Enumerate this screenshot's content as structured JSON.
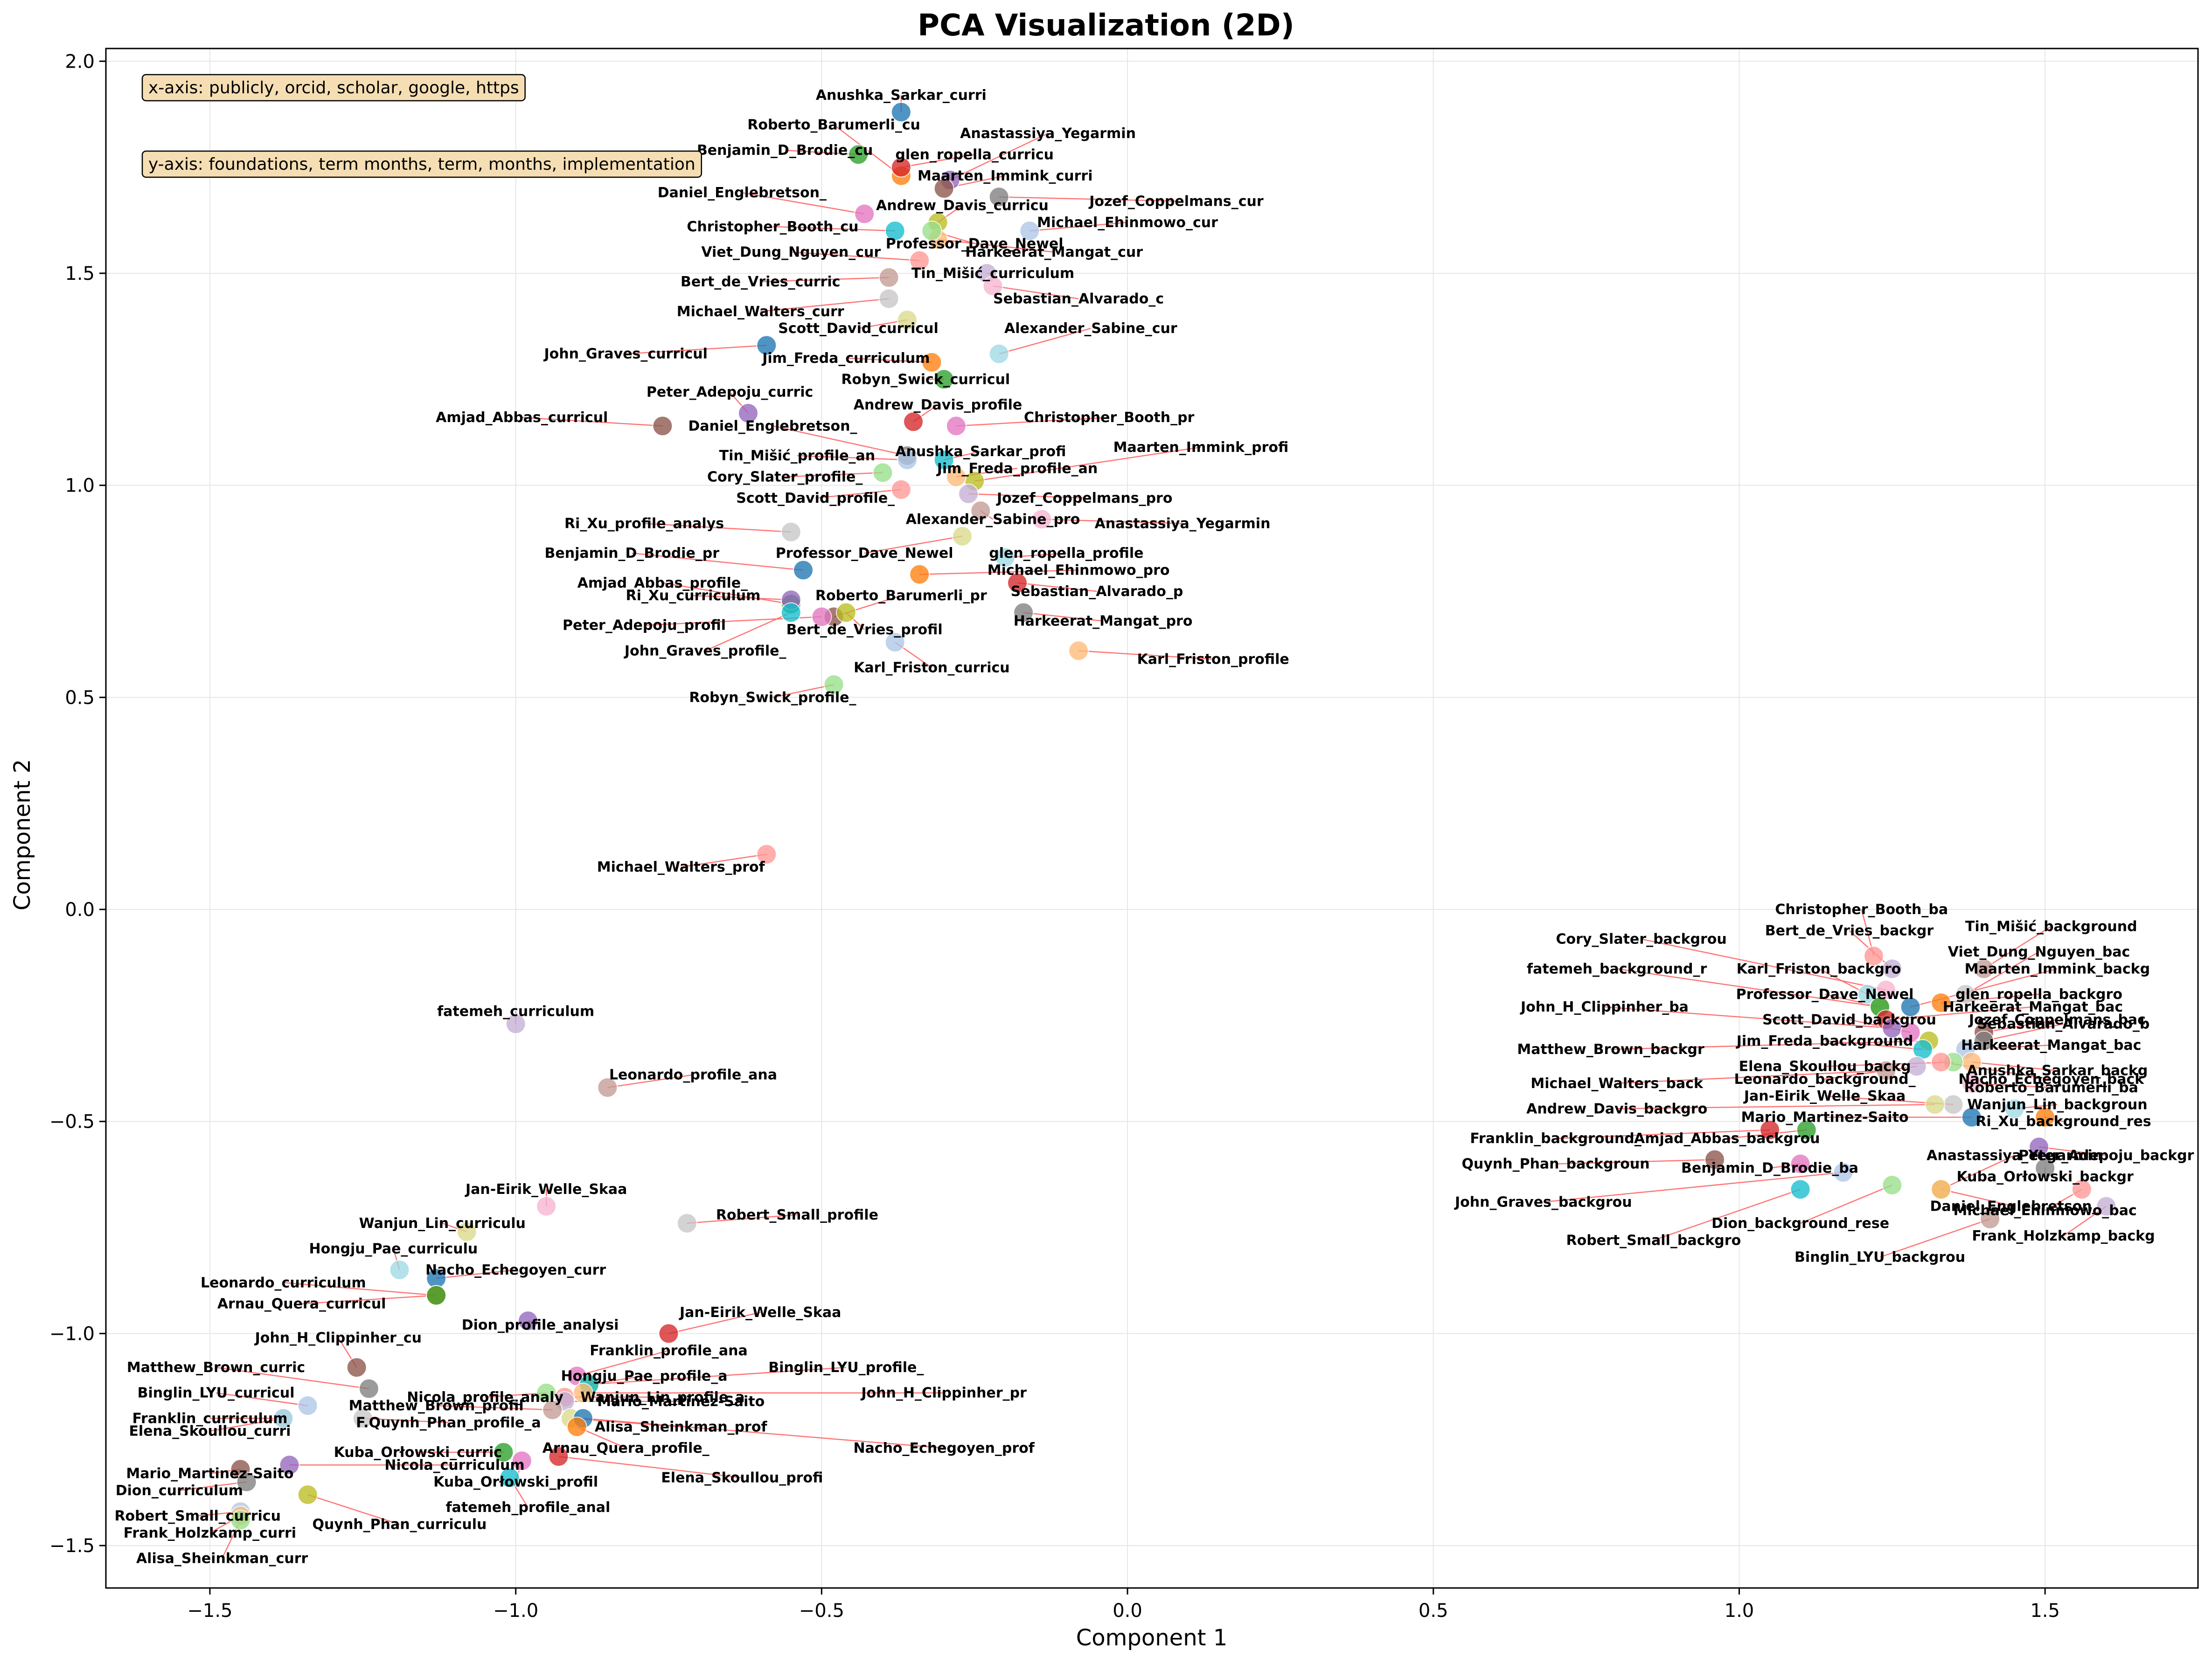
{
  "chart_data": {
    "type": "scatter",
    "title": "PCA Visualization (2D)",
    "xlabel": "Component 1",
    "ylabel": "Component 2",
    "xlim": [
      -1.67,
      1.75
    ],
    "ylim": [
      -1.6,
      2.03
    ],
    "xticks": [
      -1.5,
      -1.0,
      -0.5,
      0.0,
      0.5,
      1.0,
      1.5
    ],
    "xtick_labels": [
      "−1.5",
      "−1.0",
      "−0.5",
      "0.0",
      "0.5",
      "1.0",
      "1.5"
    ],
    "yticks": [
      -1.5,
      -1.0,
      -0.5,
      0.0,
      0.5,
      1.0,
      1.5,
      2.0
    ],
    "ytick_labels": [
      "−1.5",
      "−1.0",
      "−0.5",
      "0.0",
      "0.5",
      "1.0",
      "1.5",
      "2.0"
    ],
    "grid": true,
    "annotations": [
      "x-axis: publicly, orcid, scholar, google, https",
      "y-axis: foundations, term months, term, months, implementation"
    ],
    "point_colors": [
      "#1f77b4",
      "#ff7f0e",
      "#2ca02c",
      "#d62728",
      "#9467bd",
      "#8c564b",
      "#e377c2",
      "#7f7f7f",
      "#bcbd22",
      "#17becf",
      "#aec7e8",
      "#ffbb78",
      "#98df8a",
      "#ff9896",
      "#c5b0d5",
      "#c49c94",
      "#f7b6d2",
      "#c7c7c7",
      "#dbdb8d",
      "#9edae5"
    ],
    "leader_color": "#ff6666",
    "points": [
      {
        "label": "Anushka_Sarkar_curri",
        "x": -0.37,
        "y": 1.88,
        "lx": -0.37,
        "ly": 1.92
      },
      {
        "label": "Roberto_Barumerli_cu",
        "x": -0.37,
        "y": 1.73,
        "lx": -0.48,
        "ly": 1.85
      },
      {
        "label": "Benjamin_D_Brodie_cu",
        "x": -0.44,
        "y": 1.78,
        "lx": -0.56,
        "ly": 1.79
      },
      {
        "label": "glen_ropella_curricu",
        "x": -0.37,
        "y": 1.75,
        "lx": -0.25,
        "ly": 1.78
      },
      {
        "label": "Anastassiya_Yegarmin",
        "x": -0.29,
        "y": 1.72,
        "lx": -0.13,
        "ly": 1.83
      },
      {
        "label": "Maarten_Immink_curri",
        "x": -0.3,
        "y": 1.7,
        "lx": -0.2,
        "ly": 1.73
      },
      {
        "label": "Daniel_Englebretson_",
        "x": -0.43,
        "y": 1.64,
        "lx": -0.63,
        "ly": 1.69
      },
      {
        "label": "Jozef_Coppelmans_cur",
        "x": -0.21,
        "y": 1.68,
        "lx": 0.08,
        "ly": 1.67
      },
      {
        "label": "Andrew_Davis_curricu",
        "x": -0.31,
        "y": 1.62,
        "lx": -0.27,
        "ly": 1.66
      },
      {
        "label": "Christopher_Booth_cu",
        "x": -0.38,
        "y": 1.6,
        "lx": -0.58,
        "ly": 1.61
      },
      {
        "label": "Michael_Ehinmowo_cur",
        "x": -0.16,
        "y": 1.6,
        "lx": 0.0,
        "ly": 1.62
      },
      {
        "label": "Harkeerat_Mangat_cur",
        "x": -0.31,
        "y": 1.58,
        "lx": -0.12,
        "ly": 1.55
      },
      {
        "label": "Professor_Dave_Newel",
        "x": -0.32,
        "y": 1.6,
        "lx": -0.25,
        "ly": 1.57
      },
      {
        "label": "Viet_Dung_Nguyen_cur",
        "x": -0.34,
        "y": 1.53,
        "lx": -0.55,
        "ly": 1.55
      },
      {
        "label": "Tin_Mišić_curriculum",
        "x": -0.23,
        "y": 1.5,
        "lx": -0.22,
        "ly": 1.5
      },
      {
        "label": "Bert_de_Vries_curric",
        "x": -0.39,
        "y": 1.49,
        "lx": -0.6,
        "ly": 1.48
      },
      {
        "label": "Sebastian_Alvarado_c",
        "x": -0.22,
        "y": 1.47,
        "lx": -0.08,
        "ly": 1.44
      },
      {
        "label": "Michael_Walters_curr",
        "x": -0.39,
        "y": 1.44,
        "lx": -0.6,
        "ly": 1.41
      },
      {
        "label": "Scott_David_curricul",
        "x": -0.36,
        "y": 1.39,
        "lx": -0.44,
        "ly": 1.37
      },
      {
        "label": "Alexander_Sabine_cur",
        "x": -0.21,
        "y": 1.31,
        "lx": -0.06,
        "ly": 1.37
      },
      {
        "label": "John_Graves_curricul",
        "x": -0.59,
        "y": 1.33,
        "lx": -0.82,
        "ly": 1.31
      },
      {
        "label": "Jim_Freda_curriculum",
        "x": -0.32,
        "y": 1.29,
        "lx": -0.46,
        "ly": 1.3
      },
      {
        "label": "Robyn_Swick_curricul",
        "x": -0.3,
        "y": 1.25,
        "lx": -0.33,
        "ly": 1.25
      },
      {
        "label": "Andrew_Davis_profile",
        "x": -0.35,
        "y": 1.15,
        "lx": -0.31,
        "ly": 1.19
      },
      {
        "label": "Peter_Adepoju_curric",
        "x": -0.62,
        "y": 1.17,
        "lx": -0.65,
        "ly": 1.22
      },
      {
        "label": "Amjad_Abbas_curricul",
        "x": -0.76,
        "y": 1.14,
        "lx": -0.99,
        "ly": 1.16
      },
      {
        "label": "Christopher_Booth_pr",
        "x": -0.28,
        "y": 1.14,
        "lx": -0.03,
        "ly": 1.16
      },
      {
        "label": "Daniel_Englebretson_",
        "x": -0.36,
        "y": 1.07,
        "lx": -0.58,
        "ly": 1.14
      },
      {
        "label": "Maarten_Immink_profi",
        "x": -0.25,
        "y": 1.01,
        "lx": 0.12,
        "ly": 1.09
      },
      {
        "label": "Anushka_Sarkar_profi",
        "x": -0.3,
        "y": 1.06,
        "lx": -0.24,
        "ly": 1.08
      },
      {
        "label": "Tin_Mišić_profile_an",
        "x": -0.36,
        "y": 1.06,
        "lx": -0.54,
        "ly": 1.07
      },
      {
        "label": "Jim_Freda_profile_an",
        "x": -0.28,
        "y": 1.02,
        "lx": -0.18,
        "ly": 1.04
      },
      {
        "label": "Cory_Slater_profile_",
        "x": -0.4,
        "y": 1.03,
        "lx": -0.56,
        "ly": 1.02
      },
      {
        "label": "Scott_David_profile_",
        "x": -0.37,
        "y": 0.99,
        "lx": -0.51,
        "ly": 0.97
      },
      {
        "label": "Jozef_Coppelmans_pro",
        "x": -0.26,
        "y": 0.98,
        "lx": -0.07,
        "ly": 0.97
      },
      {
        "label": "Alexander_Sabine_pro",
        "x": -0.24,
        "y": 0.94,
        "lx": -0.22,
        "ly": 0.92
      },
      {
        "label": "Anastassiya_Yegarmin",
        "x": -0.14,
        "y": 0.92,
        "lx": 0.09,
        "ly": 0.91
      },
      {
        "label": "Ri_Xu_profile_analys",
        "x": -0.55,
        "y": 0.89,
        "lx": -0.79,
        "ly": 0.91
      },
      {
        "label": "Professor_Dave_Newel",
        "x": -0.27,
        "y": 0.88,
        "lx": -0.43,
        "ly": 0.84
      },
      {
        "label": "glen_ropella_profile",
        "x": -0.2,
        "y": 0.83,
        "lx": -0.1,
        "ly": 0.84
      },
      {
        "label": "Benjamin_D_Brodie_pr",
        "x": -0.53,
        "y": 0.8,
        "lx": -0.81,
        "ly": 0.84
      },
      {
        "label": "Michael_Ehinmowo_pro",
        "x": -0.34,
        "y": 0.79,
        "lx": -0.08,
        "ly": 0.8
      },
      {
        "label": "Amjad_Abbas_profile_",
        "x": -0.55,
        "y": 0.72,
        "lx": -0.76,
        "ly": 0.77
      },
      {
        "label": "Sebastian_Alvarado_p",
        "x": -0.18,
        "y": 0.77,
        "lx": -0.05,
        "ly": 0.75
      },
      {
        "label": "Ri_Xu_curriculum",
        "x": -0.55,
        "y": 0.73,
        "lx": -0.71,
        "ly": 0.74
      },
      {
        "label": "Roberto_Barumerli_pr",
        "x": -0.48,
        "y": 0.69,
        "lx": -0.37,
        "ly": 0.74
      },
      {
        "label": "Peter_Adepoju_profil",
        "x": -0.5,
        "y": 0.69,
        "lx": -0.79,
        "ly": 0.67
      },
      {
        "label": "Harkeerat_Mangat_pro",
        "x": -0.17,
        "y": 0.7,
        "lx": -0.04,
        "ly": 0.68
      },
      {
        "label": "Bert_de_Vries_profil",
        "x": -0.46,
        "y": 0.7,
        "lx": -0.43,
        "ly": 0.66
      },
      {
        "label": "John_Graves_profile_",
        "x": -0.55,
        "y": 0.7,
        "lx": -0.69,
        "ly": 0.61
      },
      {
        "label": "Karl_Friston_curricu",
        "x": -0.38,
        "y": 0.63,
        "lx": -0.32,
        "ly": 0.57
      },
      {
        "label": "Karl_Friston_profile",
        "x": -0.08,
        "y": 0.61,
        "lx": 0.14,
        "ly": 0.59
      },
      {
        "label": "Robyn_Swick_profile_",
        "x": -0.48,
        "y": 0.53,
        "lx": -0.58,
        "ly": 0.5
      },
      {
        "label": "Michael_Walters_prof",
        "x": -0.59,
        "y": 0.13,
        "lx": -0.73,
        "ly": 0.1
      },
      {
        "label": "fatemeh_curriculum",
        "x": -1.0,
        "y": -0.27,
        "lx": -1.0,
        "ly": -0.24
      },
      {
        "label": "Leonardo_profile_ana",
        "x": -0.85,
        "y": -0.42,
        "lx": -0.71,
        "ly": -0.39
      },
      {
        "label": "Jan-Eirik_Welle_Skaa",
        "x": -0.95,
        "y": -0.7,
        "lx": -0.95,
        "ly": -0.66
      },
      {
        "label": "Robert_Small_profile",
        "x": -0.72,
        "y": -0.74,
        "lx": -0.54,
        "ly": -0.72
      },
      {
        "label": "Wanjun_Lin_curriculu",
        "x": -1.08,
        "y": -0.76,
        "lx": -1.12,
        "ly": -0.74
      },
      {
        "label": "Hongju_Pae_curriculu",
        "x": -1.19,
        "y": -0.85,
        "lx": -1.2,
        "ly": -0.8
      },
      {
        "label": "Nacho_Echegoyen_curr",
        "x": -1.13,
        "y": -0.87,
        "lx": -1.0,
        "ly": -0.85
      },
      {
        "label": "Leonardo_curriculum",
        "x": -1.13,
        "y": -0.91,
        "lx": -1.38,
        "ly": -0.88
      },
      {
        "label": "Arnau_Quera_curricul",
        "x": -1.13,
        "y": -0.91,
        "lx": -1.35,
        "ly": -0.93
      },
      {
        "label": "Jan-Eirik_Welle_Skaa",
        "x": -0.75,
        "y": -1.0,
        "lx": -0.6,
        "ly": -0.95
      },
      {
        "label": "Dion_profile_analysi",
        "x": -0.98,
        "y": -0.97,
        "lx": -0.96,
        "ly": -0.98
      },
      {
        "label": "John_H_Clippinher_cu",
        "x": -1.26,
        "y": -1.08,
        "lx": -1.29,
        "ly": -1.01
      },
      {
        "label": "Franklin_profile_ana",
        "x": -0.9,
        "y": -1.1,
        "lx": -0.75,
        "ly": -1.04
      },
      {
        "label": "Matthew_Brown_curric",
        "x": -1.24,
        "y": -1.13,
        "lx": -1.49,
        "ly": -1.08
      },
      {
        "label": "Binglin_LYU_profile_",
        "x": -0.88,
        "y": -1.12,
        "lx": -0.46,
        "ly": -1.08
      },
      {
        "label": "Hongju_Pae_profile_a",
        "x": -0.88,
        "y": -1.12,
        "lx": -0.79,
        "ly": -1.1
      },
      {
        "label": "Binglin_LYU_curricul",
        "x": -1.34,
        "y": -1.17,
        "lx": -1.49,
        "ly": -1.14
      },
      {
        "label": "John_H_Clippinher_pr",
        "x": -0.89,
        "y": -1.14,
        "lx": -0.3,
        "ly": -1.14
      },
      {
        "label": "Nicola_profile_analy",
        "x": -0.95,
        "y": -1.14,
        "lx": -1.05,
        "ly": -1.15
      },
      {
        "label": "Wanjun_Lin_profile_a",
        "x": -0.92,
        "y": -1.15,
        "lx": -0.76,
        "ly": -1.15
      },
      {
        "label": "Mario_Martinez-Saito",
        "x": -0.92,
        "y": -1.16,
        "lx": -0.73,
        "ly": -1.16
      },
      {
        "label": "Matthew_Brown_profil",
        "x": -0.94,
        "y": -1.18,
        "lx": -1.13,
        "ly": -1.17
      },
      {
        "label": "Franklin_curriculum",
        "x": -1.38,
        "y": -1.2,
        "lx": -1.5,
        "ly": -1.2
      },
      {
        "label": "F.Quynh_Phan_profile_a",
        "x": -1.25,
        "y": -1.2,
        "lx": -1.11,
        "ly": -1.21
      },
      {
        "label": "Alisa_Sheinkman_prof",
        "x": -0.91,
        "y": -1.2,
        "lx": -0.73,
        "ly": -1.22
      },
      {
        "label": "Elena_Skoullou_curri",
        "x": -1.38,
        "y": -1.2,
        "lx": -1.5,
        "ly": -1.23
      },
      {
        "label": "Nacho_Echegoyen_prof",
        "x": -0.89,
        "y": -1.2,
        "lx": -0.3,
        "ly": -1.27
      },
      {
        "label": "Arnau_Quera_profile_",
        "x": -0.9,
        "y": -1.22,
        "lx": -0.82,
        "ly": -1.27
      },
      {
        "label": "Kuba_Orłowski_curric",
        "x": -1.02,
        "y": -1.28,
        "lx": -1.16,
        "ly": -1.28
      },
      {
        "label": "Elena_Skoullou_profi",
        "x": -0.93,
        "y": -1.29,
        "lx": -0.63,
        "ly": -1.34
      },
      {
        "label": "Nicola_curriculum",
        "x": -1.37,
        "y": -1.31,
        "lx": -1.1,
        "ly": -1.31
      },
      {
        "label": "Mario_Martinez-Saito",
        "x": -1.45,
        "y": -1.32,
        "lx": -1.5,
        "ly": -1.33
      },
      {
        "label": "Kuba_Orłowski_profil",
        "x": -0.99,
        "y": -1.3,
        "lx": -1.0,
        "ly": -1.35
      },
      {
        "label": "Dion_curriculum",
        "x": -1.44,
        "y": -1.35,
        "lx": -1.55,
        "ly": -1.37
      },
      {
        "label": "Quynh_Phan_curriculu",
        "x": -1.34,
        "y": -1.38,
        "lx": -1.19,
        "ly": -1.45
      },
      {
        "label": "fatemeh_profile_anal",
        "x": -1.01,
        "y": -1.34,
        "lx": -0.98,
        "ly": -1.41
      },
      {
        "label": "Robert_Small_curricu",
        "x": -1.45,
        "y": -1.42,
        "lx": -1.52,
        "ly": -1.43
      },
      {
        "label": "Frank_Holzkamp_curri",
        "x": -1.45,
        "y": -1.43,
        "lx": -1.5,
        "ly": -1.47
      },
      {
        "label": "Alisa_Sheinkman_curr",
        "x": -1.45,
        "y": -1.44,
        "lx": -1.48,
        "ly": -1.53
      },
      {
        "label": "Christopher_Booth_ba",
        "x": 1.22,
        "y": -0.11,
        "lx": 1.2,
        "ly": 0.0
      },
      {
        "label": "Bert_de_Vries_backgr",
        "x": 1.25,
        "y": -0.14,
        "lx": 1.18,
        "ly": -0.05
      },
      {
        "label": "Tin_Mišić_background",
        "x": 1.4,
        "y": -0.14,
        "lx": 1.51,
        "ly": -0.04
      },
      {
        "label": "Cory_Slater_backgrou",
        "x": 1.24,
        "y": -0.19,
        "lx": 0.84,
        "ly": -0.07
      },
      {
        "label": "Viet_Dung_Nguyen_bac",
        "x": 1.37,
        "y": -0.2,
        "lx": 1.49,
        "ly": -0.1
      },
      {
        "label": "fatemeh_background_r",
        "x": 1.23,
        "y": -0.23,
        "lx": 0.8,
        "ly": -0.14
      },
      {
        "label": "Karl_Friston_backgro",
        "x": 1.21,
        "y": -0.2,
        "lx": 1.13,
        "ly": -0.14
      },
      {
        "label": "Maarten_Immink_backg",
        "x": 1.28,
        "y": -0.23,
        "lx": 1.52,
        "ly": -0.14
      },
      {
        "label": "glen_ropella_backgro",
        "x": 1.33,
        "y": -0.22,
        "lx": 1.49,
        "ly": -0.2
      },
      {
        "label": "Professor_Dave_Newel",
        "x": 1.23,
        "y": -0.23,
        "lx": 1.14,
        "ly": -0.2
      },
      {
        "label": "Harkeerat_Mangat_bac",
        "x": 1.24,
        "y": -0.26,
        "lx": 1.48,
        "ly": -0.23
      },
      {
        "label": "John_H_Clippinher_ba",
        "x": 1.25,
        "y": -0.28,
        "lx": 0.78,
        "ly": -0.23
      },
      {
        "label": "Jozef_Coppelmans_bac",
        "x": 1.4,
        "y": -0.29,
        "lx": 1.52,
        "ly": -0.26
      },
      {
        "label": "Scott_David_backgrou",
        "x": 1.28,
        "y": -0.29,
        "lx": 1.18,
        "ly": -0.26
      },
      {
        "label": "Sebastian_Alvarado_b",
        "x": 1.4,
        "y": -0.31,
        "lx": 1.53,
        "ly": -0.27
      },
      {
        "label": "Matthew_Brown_backgr",
        "x": 1.31,
        "y": -0.31,
        "lx": 0.79,
        "ly": -0.33
      },
      {
        "label": "Jim_Freda_background",
        "x": 1.3,
        "y": -0.33,
        "lx": 1.14,
        "ly": -0.31
      },
      {
        "label": "Harkeerat_Mangat_bac",
        "x": 1.37,
        "y": -0.33,
        "lx": 1.51,
        "ly": -0.32
      },
      {
        "label": "Anushka_Sarkar_backg",
        "x": 1.38,
        "y": -0.36,
        "lx": 1.52,
        "ly": -0.38
      },
      {
        "label": "Elena_Skoullou_backg",
        "x": 1.35,
        "y": -0.36,
        "lx": 1.14,
        "ly": -0.37
      },
      {
        "label": "Nacho_Echegoyen_back",
        "x": 1.33,
        "y": -0.36,
        "lx": 1.51,
        "ly": -0.4
      },
      {
        "label": "Leonardo_background_",
        "x": 1.29,
        "y": -0.37,
        "lx": 1.14,
        "ly": -0.4
      },
      {
        "label": "Michael_Walters_back",
        "x": 1.24,
        "y": -0.38,
        "lx": 0.8,
        "ly": -0.41
      },
      {
        "label": "Roberto_Barumerli_ba",
        "x": 1.38,
        "y": -0.41,
        "lx": 1.51,
        "ly": -0.42
      },
      {
        "label": "Jan-Eirik_Welle_Skaa",
        "x": 1.35,
        "y": -0.46,
        "lx": 1.14,
        "ly": -0.44
      },
      {
        "label": "Andrew_Davis_backgro",
        "x": 1.32,
        "y": -0.46,
        "lx": 0.8,
        "ly": -0.47
      },
      {
        "label": "Wanjun_Lin_backgroun",
        "x": 1.45,
        "y": -0.47,
        "lx": 1.52,
        "ly": -0.46
      },
      {
        "label": "Mario_Martinez-Saito",
        "x": 1.38,
        "y": -0.49,
        "lx": 1.14,
        "ly": -0.49
      },
      {
        "label": "Ri_Xu_background_res",
        "x": 1.5,
        "y": -0.49,
        "lx": 1.53,
        "ly": -0.5
      },
      {
        "label": "Amjad_Abbas_backgrou",
        "x": 1.11,
        "y": -0.52,
        "lx": 0.98,
        "ly": -0.54
      },
      {
        "label": "Franklin_background_",
        "x": 1.05,
        "y": -0.52,
        "lx": 0.7,
        "ly": -0.54
      },
      {
        "label": "Peter_Adepoju_backgr",
        "x": 1.49,
        "y": -0.56,
        "lx": 1.6,
        "ly": -0.58
      },
      {
        "label": "Quynh_Phan_backgroun",
        "x": 0.96,
        "y": -0.59,
        "lx": 0.7,
        "ly": -0.6
      },
      {
        "label": "Benjamin_D_Brodie_ba",
        "x": 1.1,
        "y": -0.6,
        "lx": 1.05,
        "ly": -0.61
      },
      {
        "label": "Kuba_Orłowski_backgr",
        "x": 1.5,
        "y": -0.61,
        "lx": 1.5,
        "ly": -0.63
      },
      {
        "label": "Anastassiya_Yegarmin",
        "x": 1.33,
        "y": -0.66,
        "lx": 1.45,
        "ly": -0.58
      },
      {
        "label": "Robert_Small_backgro",
        "x": 1.1,
        "y": -0.66,
        "lx": 0.86,
        "ly": -0.78
      },
      {
        "label": "John_Graves_backgrou",
        "x": 1.17,
        "y": -0.62,
        "lx": 0.68,
        "ly": -0.69
      },
      {
        "label": "Daniel_Englebretson_",
        "x": 1.33,
        "y": -0.66,
        "lx": 1.45,
        "ly": -0.7
      },
      {
        "label": "Dion_background_rese",
        "x": 1.25,
        "y": -0.65,
        "lx": 1.1,
        "ly": -0.74
      },
      {
        "label": "Michael_Ehinmowo_bac",
        "x": 1.56,
        "y": -0.66,
        "lx": 1.5,
        "ly": -0.71
      },
      {
        "label": "Frank_Holzkamp_backg",
        "x": 1.6,
        "y": -0.7,
        "lx": 1.53,
        "ly": -0.77
      },
      {
        "label": "Binglin_LYU_backgrou",
        "x": 1.41,
        "y": -0.73,
        "lx": 1.23,
        "ly": -0.82
      }
    ]
  }
}
